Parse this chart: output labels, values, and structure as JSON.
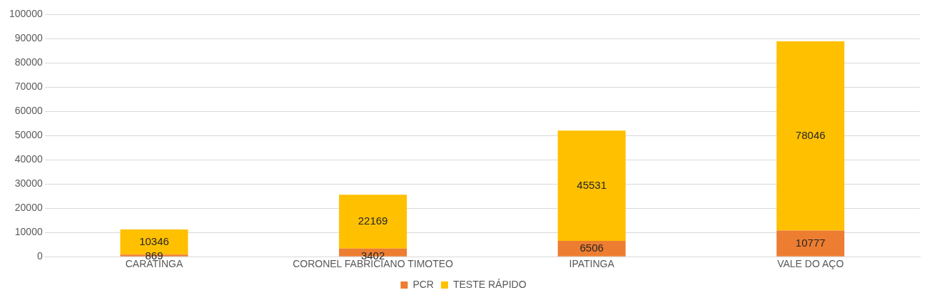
{
  "chart_data": {
    "type": "bar",
    "stacked": true,
    "categories": [
      "CARATINGA",
      "CORONEL FABRICIANO TIMOTEO",
      "IPATINGA",
      "VALE DO AÇO"
    ],
    "series": [
      {
        "name": "PCR",
        "color": "#ed7d31",
        "values": [
          869,
          3402,
          6506,
          10777
        ]
      },
      {
        "name": "TESTE RÁPIDO",
        "color": "#ffc000",
        "values": [
          10346,
          22169,
          45531,
          78046
        ]
      }
    ],
    "ylim": [
      0,
      100000
    ],
    "yticks": [
      0,
      10000,
      20000,
      30000,
      40000,
      50000,
      60000,
      70000,
      80000,
      90000,
      100000
    ],
    "grid": "y",
    "legend": "bottom",
    "data_labels": true
  }
}
